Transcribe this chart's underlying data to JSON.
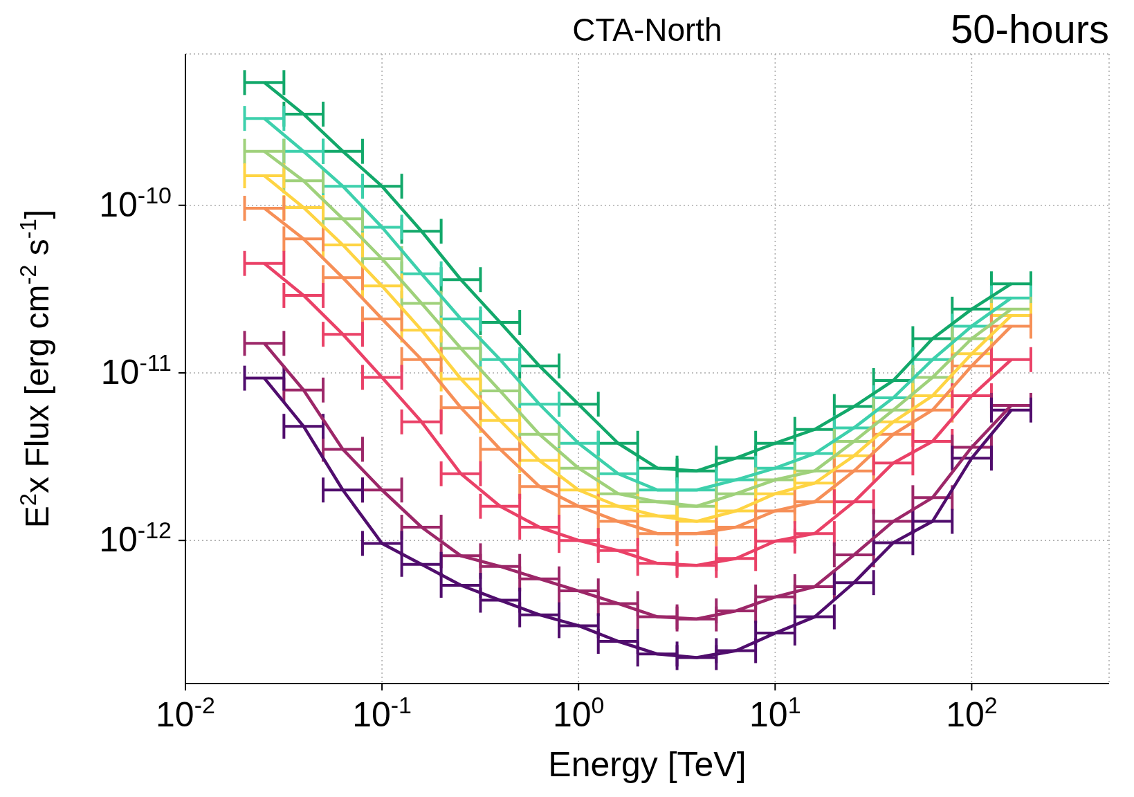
{
  "chart_data": {
    "type": "line",
    "title": "CTA-North",
    "annotations": [
      "50-hours"
    ],
    "xlabel": "Energy [TeV]",
    "ylabel": "E$^{2}$x Flux [erg cm$^{-2}$ s$^{-1}$]",
    "log": "xy",
    "grid": true,
    "marker": "none",
    "xlim": [
      0.01,
      500
    ],
    "ylim": [
      1.4e-13,
      8e-10
    ],
    "xticks": [
      {
        "value": 0.01,
        "label": "10$^{-2}$"
      },
      {
        "value": 0.1,
        "label": "10$^{-1}$"
      },
      {
        "value": 1,
        "label": "10$^{0}$"
      },
      {
        "value": 10,
        "label": "10$^{1}$"
      },
      {
        "value": 100,
        "label": "10$^{2}$"
      }
    ],
    "yticks": [
      {
        "value": 1e-12,
        "label": "10$^{-12}$"
      },
      {
        "value": 1e-11,
        "label": "10$^{-11}$"
      },
      {
        "value": 1e-10,
        "label": "10$^{-10}$"
      }
    ],
    "x": [
      0.0252,
      0.0399,
      0.0632,
      0.1,
      0.159,
      0.252,
      0.399,
      0.632,
      1.0,
      1.59,
      2.52,
      3.99,
      6.32,
      10.0,
      15.9,
      25.2,
      39.9,
      63.2,
      100,
      159
    ],
    "series": [
      {
        "color": "#12a86a",
        "values": [
          5.4e-10,
          3.5e-10,
          2.1e-10,
          1.3e-10,
          7e-11,
          3.6e-11,
          2e-11,
          1.1e-11,
          6.5e-12,
          3.8e-12,
          2.7e-12,
          2.6e-12,
          3.1e-12,
          3.8e-12,
          4.6e-12,
          6.3e-12,
          9e-12,
          1.6e-11,
          2.4e-11,
          3.4e-11
        ],
        "xerrors": [
          [
            0.02,
            0.0317
          ],
          [
            0.0317,
            0.0502
          ],
          [
            0.0502,
            0.0796
          ],
          [
            0.0796,
            0.126
          ],
          [
            0.126,
            0.2
          ],
          [
            0.2,
            0.317
          ],
          [
            0.317,
            0.502
          ],
          [
            0.502,
            0.796
          ],
          [
            0.796,
            1.26
          ],
          [
            1.26,
            2
          ],
          [
            2,
            3.17
          ],
          [
            3.17,
            5.02
          ],
          [
            5.02,
            7.96
          ],
          [
            7.96,
            12.6
          ],
          [
            12.6,
            20
          ],
          [
            20,
            31.7
          ],
          [
            31.7,
            50.2
          ],
          [
            50.2,
            79.6
          ],
          [
            79.6,
            126
          ],
          [
            126,
            200
          ]
        ]
      },
      {
        "color": "#3dd0ac",
        "values": [
          3.3e-10,
          2.1e-10,
          1.3e-10,
          7.4e-11,
          3.9e-11,
          2.1e-11,
          1.2e-11,
          6.5e-12,
          3.8e-12,
          2.5e-12,
          2e-12,
          2e-12,
          2.3e-12,
          2.7e-12,
          3.3e-12,
          4.7e-12,
          7.1e-12,
          1.2e-11,
          1.9e-11,
          2.8e-11
        ],
        "xerrors": [
          [
            0.02,
            0.0317
          ],
          [
            0.0317,
            0.0502
          ],
          [
            0.0502,
            0.0796
          ],
          [
            0.0796,
            0.126
          ],
          [
            0.126,
            0.2
          ],
          [
            0.2,
            0.317
          ],
          [
            0.317,
            0.502
          ],
          [
            0.502,
            0.796
          ],
          [
            0.796,
            1.26
          ],
          [
            1.26,
            2
          ],
          [
            2,
            3.17
          ],
          [
            3.17,
            5.02
          ],
          [
            5.02,
            7.96
          ],
          [
            7.96,
            12.6
          ],
          [
            12.6,
            20
          ],
          [
            20,
            31.7
          ],
          [
            31.7,
            50.2
          ],
          [
            50.2,
            79.6
          ],
          [
            79.6,
            126
          ],
          [
            126,
            200
          ]
        ]
      },
      {
        "color": "#9fd17b",
        "values": [
          2.1e-10,
          1.4e-10,
          8.3e-11,
          4.8e-11,
          2.6e-11,
          1.4e-11,
          7.8e-12,
          4.3e-12,
          2.7e-12,
          1.9e-12,
          1.7e-12,
          1.6e-12,
          1.9e-12,
          2.3e-12,
          2.6e-12,
          3.9e-12,
          6e-12,
          9.4e-12,
          1.6e-11,
          2.4e-11
        ],
        "xerrors": [
          [
            0.02,
            0.0317
          ],
          [
            0.0317,
            0.0502
          ],
          [
            0.0502,
            0.0796
          ],
          [
            0.0796,
            0.126
          ],
          [
            0.126,
            0.2
          ],
          [
            0.2,
            0.317
          ],
          [
            0.317,
            0.502
          ],
          [
            0.502,
            0.796
          ],
          [
            0.796,
            1.26
          ],
          [
            1.26,
            2
          ],
          [
            2,
            3.17
          ],
          [
            3.17,
            5.02
          ],
          [
            5.02,
            7.96
          ],
          [
            7.96,
            12.6
          ],
          [
            12.6,
            20
          ],
          [
            20,
            31.7
          ],
          [
            31.7,
            50.2
          ],
          [
            50.2,
            79.6
          ],
          [
            79.6,
            126
          ],
          [
            126,
            200
          ]
        ]
      },
      {
        "color": "#fed443",
        "values": [
          1.5e-10,
          9.7e-11,
          5.8e-11,
          3.3e-11,
          1.8e-11,
          9.2e-12,
          5.2e-12,
          3e-12,
          2e-12,
          1.6e-12,
          1.4e-12,
          1.3e-12,
          1.5e-12,
          1.9e-12,
          2.2e-12,
          3.2e-12,
          5.1e-12,
          7.3e-12,
          1.3e-11,
          2.2e-11
        ],
        "xerrors": [
          [
            0.02,
            0.0317
          ],
          [
            0.0317,
            0.0502
          ],
          [
            0.0502,
            0.0796
          ],
          [
            0.0796,
            0.126
          ],
          [
            0.126,
            0.2
          ],
          [
            0.2,
            0.317
          ],
          [
            0.317,
            0.502
          ],
          [
            0.502,
            0.796
          ],
          [
            0.796,
            1.26
          ],
          [
            1.26,
            2
          ],
          [
            2,
            3.17
          ],
          [
            3.17,
            5.02
          ],
          [
            5.02,
            7.96
          ],
          [
            7.96,
            12.6
          ],
          [
            12.6,
            20
          ],
          [
            20,
            31.7
          ],
          [
            31.7,
            50.2
          ],
          [
            50.2,
            79.6
          ],
          [
            79.6,
            126
          ],
          [
            126,
            200
          ]
        ]
      },
      {
        "color": "#f68f57",
        "values": [
          9.6e-11,
          6.3e-11,
          3.7e-11,
          2.1e-11,
          1.2e-11,
          6.2e-12,
          3.5e-12,
          2.1e-12,
          1.6e-12,
          1.3e-12,
          1.1e-12,
          1.1e-12,
          1.2e-12,
          1.5e-12,
          1.7e-12,
          2.6e-12,
          4.3e-12,
          6e-12,
          1.1e-11,
          1.9e-11
        ],
        "xerrors": [
          [
            0.02,
            0.0317
          ],
          [
            0.0317,
            0.0502
          ],
          [
            0.0502,
            0.0796
          ],
          [
            0.0796,
            0.126
          ],
          [
            0.126,
            0.2
          ],
          [
            0.2,
            0.317
          ],
          [
            0.317,
            0.502
          ],
          [
            0.502,
            0.796
          ],
          [
            0.796,
            1.26
          ],
          [
            1.26,
            2
          ],
          [
            2,
            3.17
          ],
          [
            3.17,
            5.02
          ],
          [
            5.02,
            7.96
          ],
          [
            7.96,
            12.6
          ],
          [
            12.6,
            20
          ],
          [
            20,
            31.7
          ],
          [
            31.7,
            50.2
          ],
          [
            50.2,
            79.6
          ],
          [
            79.6,
            126
          ],
          [
            126,
            200
          ]
        ]
      },
      {
        "color": "#ea4167",
        "values": [
          4.5e-11,
          2.9e-11,
          1.7e-11,
          9.4e-12,
          5.1e-12,
          2.5e-12,
          1.6e-12,
          1.2e-12,
          1e-12,
          8.7e-13,
          7.3e-13,
          7.1e-13,
          7.8e-13,
          9.9e-13,
          1.1e-12,
          1.7e-12,
          2.9e-12,
          3.9e-12,
          7.3e-12,
          1.2e-11
        ],
        "xerrors": [
          [
            0.02,
            0.0317
          ],
          [
            0.0317,
            0.0502
          ],
          [
            0.0502,
            0.0796
          ],
          [
            0.0796,
            0.126
          ],
          [
            0.126,
            0.2
          ],
          [
            0.2,
            0.317
          ],
          [
            0.317,
            0.502
          ],
          [
            0.502,
            0.796
          ],
          [
            0.796,
            1.26
          ],
          [
            1.26,
            2
          ],
          [
            2,
            3.17
          ],
          [
            3.17,
            5.02
          ],
          [
            5.02,
            7.96
          ],
          [
            7.96,
            12.6
          ],
          [
            12.6,
            20
          ],
          [
            20,
            31.7
          ],
          [
            31.7,
            50.2
          ],
          [
            50.2,
            79.6
          ],
          [
            79.6,
            126
          ],
          [
            126,
            200
          ]
        ]
      },
      {
        "color": "#9c2768",
        "values": [
          1.5e-11,
          7.9e-12,
          3.5e-12,
          2e-12,
          1.2e-12,
          8.1e-13,
          7e-13,
          5.9e-13,
          5e-13,
          4.2e-13,
          3.5e-13,
          3.4e-13,
          3.8e-13,
          4.6e-13,
          5.3e-13,
          8.2e-13,
          1.3e-12,
          1.8e-12,
          3.6e-12,
          6.4e-12
        ],
        "xerrors": [
          [
            0.02,
            0.0317
          ],
          [
            0.0317,
            0.0502
          ],
          [
            0.0502,
            0.0796
          ],
          [
            0.0796,
            0.126
          ],
          [
            0.126,
            0.2
          ],
          [
            0.2,
            0.317
          ],
          [
            0.317,
            0.502
          ],
          [
            0.502,
            0.796
          ],
          [
            0.796,
            1.26
          ],
          [
            1.26,
            2
          ],
          [
            2,
            3.17
          ],
          [
            3.17,
            5.02
          ],
          [
            5.02,
            7.96
          ],
          [
            7.96,
            12.6
          ],
          [
            12.6,
            20
          ],
          [
            20,
            31.7
          ],
          [
            31.7,
            50.2
          ],
          [
            50.2,
            79.6
          ],
          [
            79.6,
            126
          ],
          [
            126,
            200
          ]
        ]
      },
      {
        "color": "#500d6d",
        "values": [
          9.3e-12,
          4.8e-12,
          2e-12,
          9.6e-13,
          7.2e-13,
          5.4e-13,
          4.4e-13,
          3.6e-13,
          3.1e-13,
          2.5e-13,
          2.1e-13,
          2e-13,
          2.2e-13,
          2.8e-13,
          3.5e-13,
          5.6e-13,
          9.7e-13,
          1.3e-12,
          3.1e-12,
          6e-12
        ],
        "xerrors": [
          [
            0.02,
            0.0317
          ],
          [
            0.0317,
            0.0502
          ],
          [
            0.0502,
            0.0796
          ],
          [
            0.0796,
            0.126
          ],
          [
            0.126,
            0.2
          ],
          [
            0.2,
            0.317
          ],
          [
            0.317,
            0.502
          ],
          [
            0.502,
            0.796
          ],
          [
            0.796,
            1.26
          ],
          [
            1.26,
            2
          ],
          [
            2,
            3.17
          ],
          [
            3.17,
            5.02
          ],
          [
            5.02,
            7.96
          ],
          [
            7.96,
            12.6
          ],
          [
            12.6,
            20
          ],
          [
            20,
            31.7
          ],
          [
            31.7,
            50.2
          ],
          [
            50.2,
            79.6
          ],
          [
            79.6,
            126
          ],
          [
            126,
            200
          ]
        ]
      }
    ]
  }
}
